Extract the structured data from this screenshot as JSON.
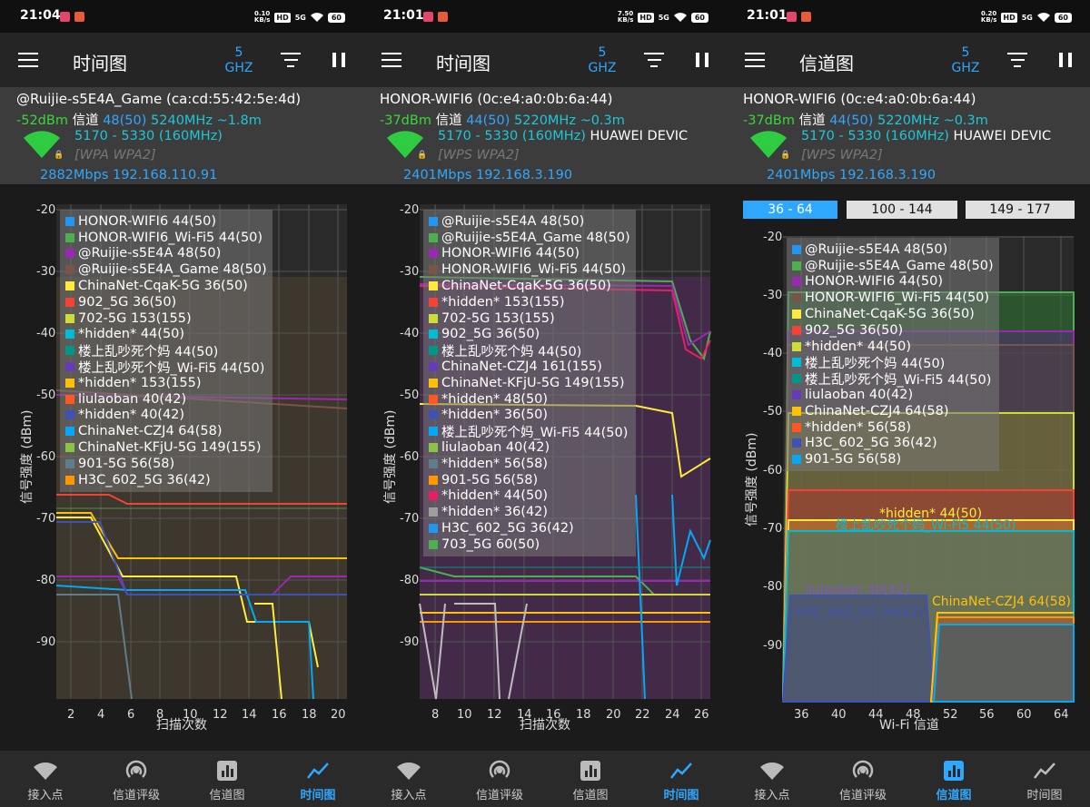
{
  "panels": [
    {
      "status": {
        "time": "21:04",
        "speed_top": "0.10",
        "speed_bottom": "KB/s",
        "hd": "HD",
        "net": "5G",
        "battery": "60"
      },
      "toolbar": {
        "title": "时间图",
        "band_top": "5",
        "band_bottom": "GHZ"
      },
      "ap": {
        "name": "@Ruijie-s5E4A_Game (ca:cd:55:42:5e:4d)",
        "signal": "-52dBm",
        "channel_label": "信道",
        "channel": "48(50)",
        "freq": "5240MHz",
        "distance": "~1.8m",
        "range": "5170 - 5330 (160MHz)",
        "vendor": "",
        "security": "[WPA WPA2]",
        "speed_ip": "2882Mbps 192.168.110.91"
      },
      "chart": {
        "ylabel": "信号强度 (dBm)",
        "xlabel": "扫描次数",
        "y_ticks": [
          "-20",
          "-30",
          "-40",
          "-50",
          "-60",
          "-70",
          "-80",
          "-90"
        ],
        "x_ticks": [
          "2",
          "4",
          "6",
          "8",
          "10",
          "12",
          "14",
          "16",
          "18",
          "20"
        ]
      },
      "legend": [
        {
          "label": "HONOR-WIFI6 44(50)",
          "color": "#2196f3"
        },
        {
          "label": "HONOR-WIFI6_Wi-Fi5 44(50)",
          "color": "#4caf50"
        },
        {
          "label": "@Ruijie-s5E4A 48(50)",
          "color": "#9c27b0"
        },
        {
          "label": "@Ruijie-s5E4A_Game 48(50)",
          "color": "#795548"
        },
        {
          "label": "ChinaNet-CqaK-5G 36(50)",
          "color": "#ffeb3b"
        },
        {
          "label": "902_5G 36(50)",
          "color": "#f44336"
        },
        {
          "label": "702-5G 153(155)",
          "color": "#cddc39"
        },
        {
          "label": "*hidden* 44(50)",
          "color": "#00bcd4"
        },
        {
          "label": "楼上乱吵死个妈 44(50)",
          "color": "#009688"
        },
        {
          "label": "楼上乱吵死个妈_Wi-Fi5 44(50)",
          "color": "#673ab7"
        },
        {
          "label": "*hidden* 153(155)",
          "color": "#ffc107"
        },
        {
          "label": "liulaoban 40(42)",
          "color": "#ff5722"
        },
        {
          "label": "*hidden* 40(42)",
          "color": "#3f51b5"
        },
        {
          "label": "ChinaNet-CZJ4 64(58)",
          "color": "#03a9f4"
        },
        {
          "label": "ChinaNet-KFjU-5G 149(155)",
          "color": "#8bc34a"
        },
        {
          "label": "901-5G 56(58)",
          "color": "#607d8b"
        },
        {
          "label": "H3C_602_5G 36(42)",
          "color": "#ff9800"
        }
      ],
      "nav": [
        {
          "label": "接入点"
        },
        {
          "label": "信道评级"
        },
        {
          "label": "信道图"
        },
        {
          "label": "时间图"
        }
      ],
      "nav_active": 3
    },
    {
      "status": {
        "time": "21:01",
        "speed_top": "7.50",
        "speed_bottom": "KB/s",
        "hd": "HD",
        "net": "5G",
        "battery": "60"
      },
      "toolbar": {
        "title": "时间图",
        "band_top": "5",
        "band_bottom": "GHZ"
      },
      "ap": {
        "name": "HONOR-WIFI6 (0c:e4:a0:0b:6a:44)",
        "signal": "-37dBm",
        "channel_label": "信道",
        "channel": "44(50)",
        "freq": "5220MHz",
        "distance": "~0.3m",
        "range": "5170 - 5330 (160MHz)",
        "vendor": "HUAWEI DEVIC",
        "security": "[WPS WPA2]",
        "speed_ip": "2401Mbps 192.168.3.190"
      },
      "chart": {
        "ylabel": "信号强度 (dBm)",
        "xlabel": "扫描次数",
        "y_ticks": [
          "-20",
          "-30",
          "-40",
          "-50",
          "-60",
          "-70",
          "-80",
          "-90"
        ],
        "x_ticks": [
          "8",
          "10",
          "12",
          "14",
          "16",
          "18",
          "20",
          "22",
          "24",
          "26"
        ]
      },
      "legend": [
        {
          "label": "@Ruijie-s5E4A 48(50)",
          "color": "#2196f3"
        },
        {
          "label": "@Ruijie-s5E4A_Game 48(50)",
          "color": "#4caf50"
        },
        {
          "label": "HONOR-WIFI6 44(50)",
          "color": "#9c27b0"
        },
        {
          "label": "HONOR-WIFI6_Wi-Fi5 44(50)",
          "color": "#795548"
        },
        {
          "label": "ChinaNet-CqaK-5G 36(50)",
          "color": "#ffeb3b"
        },
        {
          "label": "*hidden* 153(155)",
          "color": "#f44336"
        },
        {
          "label": "702-5G 153(155)",
          "color": "#cddc39"
        },
        {
          "label": "902_5G 36(50)",
          "color": "#00bcd4"
        },
        {
          "label": "楼上乱吵死个妈 44(50)",
          "color": "#009688"
        },
        {
          "label": "ChinaNet-CZJ4 161(155)",
          "color": "#673ab7"
        },
        {
          "label": "ChinaNet-KFjU-5G 149(155)",
          "color": "#ffc107"
        },
        {
          "label": "*hidden* 48(50)",
          "color": "#ff5722"
        },
        {
          "label": "*hidden* 36(50)",
          "color": "#3f51b5"
        },
        {
          "label": "楼上乱吵死个妈_Wi-Fi5 44(50)",
          "color": "#03a9f4"
        },
        {
          "label": "liulaoban 40(42)",
          "color": "#8bc34a"
        },
        {
          "label": "*hidden* 56(58)",
          "color": "#607d8b"
        },
        {
          "label": "901-5G 56(58)",
          "color": "#ff9800"
        },
        {
          "label": "*hidden* 44(50)",
          "color": "#e91e63"
        },
        {
          "label": "*hidden* 36(42)",
          "color": "#9e9e9e"
        },
        {
          "label": "H3C_602_5G 36(42)",
          "color": "#2196f3"
        },
        {
          "label": "703_5G 60(50)",
          "color": "#4caf50"
        }
      ],
      "nav": [
        {
          "label": "接入点"
        },
        {
          "label": "信道评级"
        },
        {
          "label": "信道图"
        },
        {
          "label": "时间图"
        }
      ],
      "nav_active": 3
    },
    {
      "status": {
        "time": "21:01",
        "speed_top": "0.20",
        "speed_bottom": "KB/s",
        "hd": "HD",
        "net": "5G",
        "battery": "60"
      },
      "toolbar": {
        "title": "信道图",
        "band_top": "5",
        "band_bottom": "GHZ"
      },
      "ap": {
        "name": "HONOR-WIFI6 (0c:e4:a0:0b:6a:44)",
        "signal": "-37dBm",
        "channel_label": "信道",
        "channel": "44(50)",
        "freq": "5220MHz",
        "distance": "~0.3m",
        "range": "5170 - 5330 (160MHz)",
        "vendor": "HUAWEI DEVIC",
        "security": "[WPS WPA2]",
        "speed_ip": "2401Mbps 192.168.3.190"
      },
      "channel_tabs": [
        {
          "label": "36 - 64"
        },
        {
          "label": "100 - 144"
        },
        {
          "label": "149 - 177"
        }
      ],
      "channel_tab_active": 0,
      "chart": {
        "ylabel": "信号强度 (dBm)",
        "xlabel": "Wi-Fi 信道",
        "y_ticks": [
          "-20",
          "-30",
          "-40",
          "-50",
          "-60",
          "-70",
          "-80",
          "-90"
        ],
        "x_ticks": [
          "36",
          "40",
          "44",
          "48",
          "52",
          "56",
          "60",
          "64"
        ]
      },
      "chart_labels": [
        {
          "text": "*hidden* 44(50)",
          "color": "#ffeb3b"
        },
        {
          "text": "楼上乱吵死个妈_Wi-Fi5 44(50)",
          "color": "#00bcd4"
        },
        {
          "text": "liulaoban 40(42)",
          "color": "#7e57c2"
        },
        {
          "text": "H3C_602_5G 36(42)",
          "color": "#3f51b5"
        },
        {
          "text": "ChinaNet-CZJ4 64(58)",
          "color": "#ffc107"
        }
      ],
      "legend": [
        {
          "label": "@Ruijie-s5E4A 48(50)",
          "color": "#2196f3"
        },
        {
          "label": "@Ruijie-s5E4A_Game 48(50)",
          "color": "#4caf50"
        },
        {
          "label": "HONOR-WIFI6 44(50)",
          "color": "#9c27b0"
        },
        {
          "label": "HONOR-WIFI6_Wi-Fi5 44(50)",
          "color": "#795548"
        },
        {
          "label": "ChinaNet-CqaK-5G 36(50)",
          "color": "#ffeb3b"
        },
        {
          "label": "902_5G 36(50)",
          "color": "#f44336"
        },
        {
          "label": "*hidden* 44(50)",
          "color": "#cddc39"
        },
        {
          "label": "楼上乱吵死个妈 44(50)",
          "color": "#00bcd4"
        },
        {
          "label": "楼上乱吵死个妈_Wi-Fi5 44(50)",
          "color": "#009688"
        },
        {
          "label": "liulaoban 40(42)",
          "color": "#673ab7"
        },
        {
          "label": "ChinaNet-CZJ4 64(58)",
          "color": "#ffc107"
        },
        {
          "label": "*hidden* 56(58)",
          "color": "#ff5722"
        },
        {
          "label": "H3C_602_5G 36(42)",
          "color": "#3f51b5"
        },
        {
          "label": "901-5G 56(58)",
          "color": "#03a9f4"
        }
      ],
      "nav": [
        {
          "label": "接入点"
        },
        {
          "label": "信道评级"
        },
        {
          "label": "信道图"
        },
        {
          "label": "时间图"
        }
      ],
      "nav_active": 2
    }
  ],
  "colors": {
    "accent": "#2ea8ff",
    "signal_green": "#3bd63b",
    "cyan": "#22d0e0"
  }
}
